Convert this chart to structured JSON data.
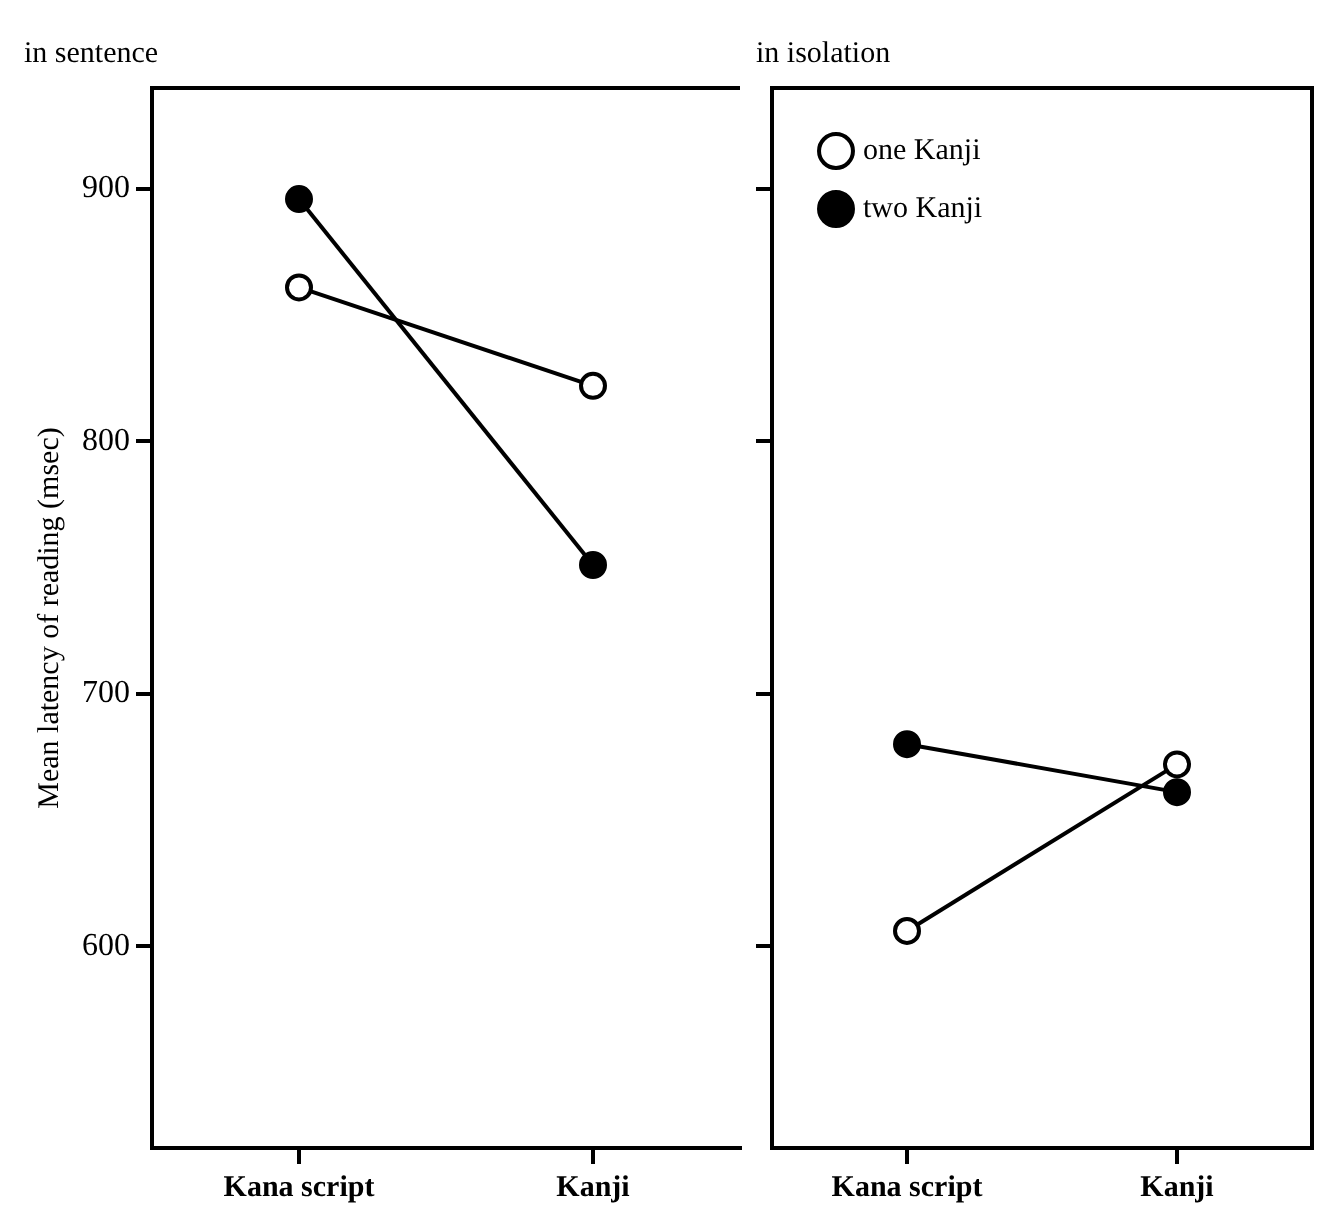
{
  "chart_data": [
    {
      "type": "line",
      "title": "in sentence",
      "ylabel": "Mean latency of reading (msec)",
      "categories": [
        "Kana script",
        "Kanji"
      ],
      "ylim": [
        520,
        940
      ],
      "yticks": [
        600,
        700,
        800,
        900
      ],
      "marker": "circle",
      "grid": false,
      "legend": false,
      "series": [
        {
          "color": "#000000",
          "values": [
            861,
            822
          ]
        },
        {
          "color": "#000000",
          "values": [
            896,
            751
          ]
        }
      ]
    },
    {
      "type": "line",
      "title": "in isolation",
      "categories": [
        "Kana script",
        "Kanji"
      ],
      "ylim": [
        520,
        940
      ],
      "yticks": [
        600,
        700,
        800,
        900
      ],
      "tick_labels": "x",
      "marker": "circle",
      "grid": false,
      "legend": "top left",
      "series": [
        {
          "name": "one Kanji",
          "color": "#000000",
          "values": [
            606,
            672
          ]
        },
        {
          "name": "two Kanji",
          "color": "#000000",
          "values": [
            680,
            661
          ]
        }
      ]
    }
  ]
}
